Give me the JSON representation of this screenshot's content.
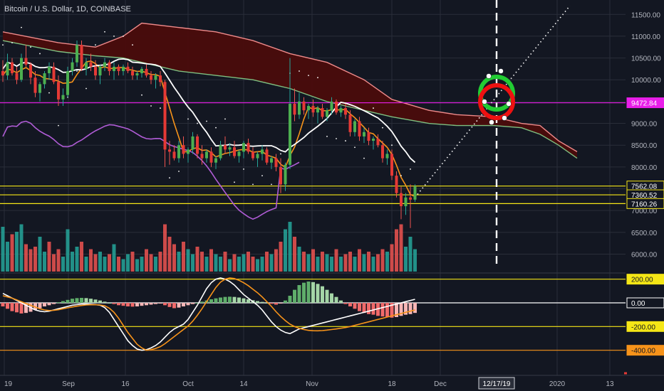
{
  "header": {
    "title": "Bitcoin / U.S. Dollar, 1D, COINBASE"
  },
  "colors": {
    "background": "#131722",
    "up": "#26a69a",
    "down": "#ef5350",
    "magenta_line": "#e91ee9",
    "yellow_line": "#f5e616",
    "orange_line": "#f7931a",
    "white_line": "#ffffff",
    "purple_line": "#b05cd6",
    "cloud_dark_red": "#4a0c0c",
    "cloud_green": "#7fbf80",
    "macd_up": "#5fae6a",
    "macd_down": "#f06a6a",
    "grid": "#2a2e39"
  },
  "chart_data": {
    "type": "candlestick",
    "title": "Bitcoin / U.S. Dollar, 1D, COINBASE",
    "price_axis": {
      "ticks": [
        "11500.00",
        "11000.00",
        "10500.00",
        "10000.00",
        "9500.00",
        "9000.00",
        "8500.00",
        "8000.00",
        "7500.00",
        "7000.00",
        "6500.00",
        "6000.00"
      ],
      "tick_values": [
        11500,
        11000,
        10500,
        10000,
        9500,
        9000,
        8500,
        8000,
        7500,
        7000,
        6500,
        6000
      ],
      "ylim": [
        5600,
        11700
      ],
      "badges": [
        {
          "label": "9472.84",
          "value": 9472.84,
          "color": "#e91ee9"
        },
        {
          "label": "7562.08",
          "value": 7562.08,
          "color": "#131722"
        },
        {
          "label": "7360.52",
          "value": 7360.52,
          "color": "#131722"
        },
        {
          "label": "7160.26",
          "value": 7160.26,
          "color": "#131722"
        }
      ]
    },
    "macd_axis": {
      "ticks": [
        {
          "label": "200.00",
          "value": 200,
          "color": "#f5e616"
        },
        {
          "label": "0.00",
          "value": 0,
          "color": "#ffffff"
        },
        {
          "label": "-200.00",
          "value": -200,
          "color": "#f5e616"
        },
        {
          "label": "-400.00",
          "value": -400,
          "color": "#f7931a"
        }
      ],
      "ylim": [
        -600,
        240
      ]
    },
    "x_axis": {
      "labels": [
        "19",
        "Sep",
        "16",
        "Oct",
        "14",
        "Nov",
        "18",
        "Dec",
        "2020",
        "13"
      ],
      "highlight_label": "12/17/19"
    },
    "horizontal_lines": [
      {
        "value": 9472.84,
        "color": "#e91ee9"
      },
      {
        "value": 7562.08,
        "color": "#f5e616"
      },
      {
        "value": 7360.52,
        "color": "#f5e616"
      },
      {
        "value": 7160.26,
        "color": "#f5e616"
      }
    ],
    "candles_ohlc": [
      [
        10200,
        10450,
        9950,
        10100
      ],
      [
        10100,
        10600,
        10000,
        10400
      ],
      [
        10400,
        10500,
        10100,
        10150
      ],
      [
        10150,
        10300,
        9900,
        10000
      ],
      [
        10000,
        10600,
        9950,
        10500
      ],
      [
        10500,
        10800,
        10300,
        10350
      ],
      [
        10350,
        10400,
        9900,
        10050
      ],
      [
        10050,
        10200,
        9600,
        9700
      ],
      [
        9700,
        9950,
        9500,
        9900
      ],
      [
        9900,
        10200,
        9800,
        10150
      ],
      [
        10150,
        10400,
        10000,
        10300
      ],
      [
        10300,
        10400,
        9900,
        9950
      ],
      [
        9950,
        10100,
        9400,
        9550
      ],
      [
        9550,
        9800,
        9400,
        9650
      ],
      [
        9650,
        10300,
        9600,
        10200
      ],
      [
        10200,
        10500,
        10100,
        10400
      ],
      [
        10400,
        10900,
        10300,
        10800
      ],
      [
        10800,
        10900,
        10200,
        10250
      ],
      [
        10250,
        10500,
        10100,
        10400
      ],
      [
        10400,
        10600,
        10200,
        10300
      ],
      [
        10300,
        10450,
        10000,
        10100
      ],
      [
        10100,
        10350,
        9900,
        10300
      ],
      [
        10300,
        10500,
        10200,
        10400
      ],
      [
        10400,
        10450,
        10100,
        10200
      ],
      [
        10200,
        10400,
        10000,
        10300
      ],
      [
        10300,
        10350,
        10100,
        10200
      ],
      [
        10200,
        10350,
        10100,
        10300
      ],
      [
        10300,
        10400,
        10150,
        10200
      ],
      [
        10200,
        10300,
        10000,
        10100
      ],
      [
        10100,
        10200,
        10000,
        10150
      ],
      [
        10150,
        10300,
        10050,
        10250
      ],
      [
        10250,
        10350,
        10050,
        10100
      ],
      [
        10100,
        10200,
        9900,
        10000
      ],
      [
        10000,
        10150,
        9800,
        10100
      ],
      [
        10100,
        10200,
        9850,
        9950
      ],
      [
        9950,
        10000,
        8000,
        8400
      ],
      [
        8400,
        8600,
        8050,
        8350
      ],
      [
        8350,
        8500,
        8150,
        8200
      ],
      [
        8200,
        8600,
        8100,
        8500
      ],
      [
        8500,
        8700,
        8200,
        8300
      ],
      [
        8300,
        8450,
        8100,
        8400
      ],
      [
        8400,
        8800,
        8300,
        8700
      ],
      [
        8700,
        8750,
        8200,
        8300
      ],
      [
        8300,
        8500,
        8050,
        8200
      ],
      [
        8200,
        8400,
        8100,
        8350
      ],
      [
        8350,
        8450,
        8000,
        8100
      ],
      [
        8100,
        8250,
        7950,
        8200
      ],
      [
        8200,
        8600,
        8150,
        8500
      ],
      [
        8500,
        8700,
        8300,
        8400
      ],
      [
        8400,
        8550,
        8250,
        8450
      ],
      [
        8450,
        8600,
        8200,
        8250
      ],
      [
        8250,
        8400,
        8100,
        8350
      ],
      [
        8350,
        8600,
        8200,
        8550
      ],
      [
        8550,
        8650,
        8300,
        8350
      ],
      [
        8350,
        8450,
        8150,
        8200
      ],
      [
        8200,
        8350,
        8000,
        8300
      ],
      [
        8300,
        8500,
        8150,
        8400
      ],
      [
        8400,
        8450,
        8050,
        8100
      ],
      [
        8100,
        8250,
        7950,
        8200
      ],
      [
        8200,
        8300,
        7900,
        8000
      ],
      [
        8000,
        8200,
        7400,
        7600
      ],
      [
        7600,
        8100,
        7450,
        8050
      ],
      [
        8050,
        10500,
        7950,
        9450
      ],
      [
        9450,
        9800,
        9050,
        9200
      ],
      [
        9200,
        9700,
        9100,
        9500
      ],
      [
        9500,
        9600,
        9200,
        9300
      ],
      [
        9300,
        9450,
        9100,
        9400
      ],
      [
        9400,
        9550,
        9150,
        9250
      ],
      [
        9250,
        9400,
        9000,
        9350
      ],
      [
        9350,
        9450,
        9100,
        9150
      ],
      [
        9150,
        9350,
        9050,
        9300
      ],
      [
        9300,
        9600,
        9200,
        9500
      ],
      [
        9500,
        9550,
        9200,
        9250
      ],
      [
        9250,
        9400,
        9150,
        9350
      ],
      [
        9350,
        9450,
        9100,
        9200
      ],
      [
        9200,
        9300,
        8700,
        8800
      ],
      [
        8800,
        9100,
        8700,
        9050
      ],
      [
        9050,
        9150,
        8600,
        8700
      ],
      [
        8700,
        8900,
        8550,
        8800
      ],
      [
        8800,
        8900,
        8500,
        8600
      ],
      [
        8600,
        8700,
        8400,
        8650
      ],
      [
        8650,
        8750,
        8450,
        8500
      ],
      [
        8500,
        8600,
        8100,
        8200
      ],
      [
        8200,
        8400,
        8050,
        8300
      ],
      [
        8300,
        8400,
        7700,
        7800
      ],
      [
        7800,
        7900,
        7300,
        7400
      ],
      [
        7400,
        7550,
        6800,
        7100
      ],
      [
        7100,
        7400,
        6900,
        7300
      ],
      [
        7300,
        7600,
        6600,
        7250
      ],
      [
        7250,
        7600,
        7200,
        7550
      ]
    ],
    "volume_scale_max": 100,
    "volumes": [
      [
        90,
        0
      ],
      [
        60,
        0
      ],
      [
        75,
        1
      ],
      [
        80,
        0
      ],
      [
        95,
        0
      ],
      [
        55,
        1
      ],
      [
        45,
        1
      ],
      [
        50,
        1
      ],
      [
        70,
        0
      ],
      [
        40,
        0
      ],
      [
        60,
        1
      ],
      [
        35,
        1
      ],
      [
        45,
        1
      ],
      [
        30,
        0
      ],
      [
        85,
        0
      ],
      [
        40,
        0
      ],
      [
        50,
        0
      ],
      [
        60,
        1
      ],
      [
        30,
        0
      ],
      [
        45,
        1
      ],
      [
        35,
        1
      ],
      [
        40,
        0
      ],
      [
        30,
        0
      ],
      [
        35,
        1
      ],
      [
        55,
        0
      ],
      [
        30,
        1
      ],
      [
        25,
        0
      ],
      [
        35,
        0
      ],
      [
        40,
        1
      ],
      [
        25,
        0
      ],
      [
        30,
        0
      ],
      [
        45,
        1
      ],
      [
        35,
        1
      ],
      [
        30,
        0
      ],
      [
        40,
        1
      ],
      [
        95,
        1
      ],
      [
        70,
        1
      ],
      [
        55,
        1
      ],
      [
        40,
        0
      ],
      [
        60,
        1
      ],
      [
        45,
        0
      ],
      [
        35,
        0
      ],
      [
        50,
        1
      ],
      [
        40,
        1
      ],
      [
        30,
        0
      ],
      [
        45,
        1
      ],
      [
        35,
        0
      ],
      [
        30,
        0
      ],
      [
        40,
        1
      ],
      [
        25,
        0
      ],
      [
        35,
        1
      ],
      [
        30,
        0
      ],
      [
        35,
        0
      ],
      [
        40,
        1
      ],
      [
        30,
        1
      ],
      [
        25,
        0
      ],
      [
        30,
        0
      ],
      [
        40,
        1
      ],
      [
        35,
        0
      ],
      [
        45,
        1
      ],
      [
        60,
        1
      ],
      [
        85,
        0
      ],
      [
        100,
        0
      ],
      [
        70,
        1
      ],
      [
        50,
        0
      ],
      [
        40,
        1
      ],
      [
        35,
        0
      ],
      [
        45,
        1
      ],
      [
        30,
        0
      ],
      [
        40,
        1
      ],
      [
        35,
        0
      ],
      [
        30,
        0
      ],
      [
        45,
        1
      ],
      [
        30,
        0
      ],
      [
        35,
        1
      ],
      [
        40,
        1
      ],
      [
        30,
        0
      ],
      [
        45,
        1
      ],
      [
        35,
        0
      ],
      [
        40,
        1
      ],
      [
        30,
        0
      ],
      [
        35,
        1
      ],
      [
        45,
        1
      ],
      [
        40,
        0
      ],
      [
        55,
        1
      ],
      [
        85,
        1
      ],
      [
        95,
        1
      ],
      [
        50,
        0
      ],
      [
        70,
        0
      ],
      [
        45,
        0
      ]
    ],
    "macd_histogram": [
      -30,
      -50,
      -70,
      -80,
      -90,
      -85,
      -75,
      -60,
      -45,
      -30,
      -20,
      -10,
      5,
      15,
      25,
      35,
      40,
      42,
      40,
      35,
      28,
      20,
      10,
      0,
      -10,
      -20,
      -25,
      -30,
      -32,
      -30,
      -25,
      -20,
      -15,
      -10,
      -5,
      -20,
      -35,
      -45,
      -40,
      -30,
      -20,
      -10,
      0,
      10,
      20,
      30,
      38,
      45,
      50,
      52,
      50,
      45,
      38,
      30,
      22,
      15,
      8,
      0,
      -8,
      -15,
      -5,
      20,
      60,
      110,
      150,
      170,
      180,
      175,
      160,
      140,
      110,
      80,
      50,
      20,
      -10,
      -30,
      -50,
      -70,
      -85,
      -95,
      -100,
      -110,
      -115,
      -120,
      -125,
      -120,
      -110,
      -100,
      -95,
      -85
    ],
    "macd_line": [
      80,
      60,
      40,
      20,
      0,
      -20,
      -40,
      -60,
      -70,
      -75,
      -70,
      -60,
      -50,
      -40,
      -30,
      -20,
      -15,
      -10,
      -10,
      -12,
      -15,
      -20,
      -40,
      -80,
      -140,
      -200,
      -260,
      -320,
      -360,
      -390,
      -400,
      -395,
      -380,
      -360,
      -330,
      -290,
      -250,
      -220,
      -200,
      -180,
      -140,
      -80,
      -20,
      50,
      120,
      170,
      200,
      210,
      200,
      180,
      150,
      110,
      70,
      40,
      10,
      -20,
      -60,
      -110,
      -160,
      -200,
      -230,
      -250,
      -260,
      -240,
      -220,
      -210,
      -200,
      -190,
      -180,
      -170,
      -160,
      -150,
      -140,
      -130,
      -120,
      -110,
      -100,
      -90,
      -80,
      -70,
      -60,
      -50,
      -40,
      -30,
      -20,
      -10,
      0,
      10,
      20,
      30
    ],
    "signal_line": [
      60,
      50,
      40,
      25,
      10,
      -5,
      -20,
      -35,
      -50,
      -60,
      -65,
      -63,
      -58,
      -50,
      -42,
      -35,
      -28,
      -22,
      -18,
      -16,
      -16,
      -18,
      -25,
      -45,
      -80,
      -130,
      -190,
      -250,
      -300,
      -350,
      -380,
      -400,
      -395,
      -385,
      -370,
      -345,
      -315,
      -285,
      -255,
      -225,
      -195,
      -155,
      -105,
      -50,
      10,
      70,
      130,
      175,
      200,
      210,
      205,
      190,
      170,
      145,
      115,
      85,
      50,
      10,
      -30,
      -75,
      -115,
      -150,
      -180,
      -200,
      -215,
      -225,
      -232,
      -235,
      -236,
      -234,
      -230,
      -225,
      -220,
      -214,
      -208,
      -200,
      -190,
      -180,
      -170,
      -160,
      -150,
      -140,
      -130,
      -120,
      -110,
      -100,
      -90,
      -80,
      -70,
      -60
    ]
  }
}
